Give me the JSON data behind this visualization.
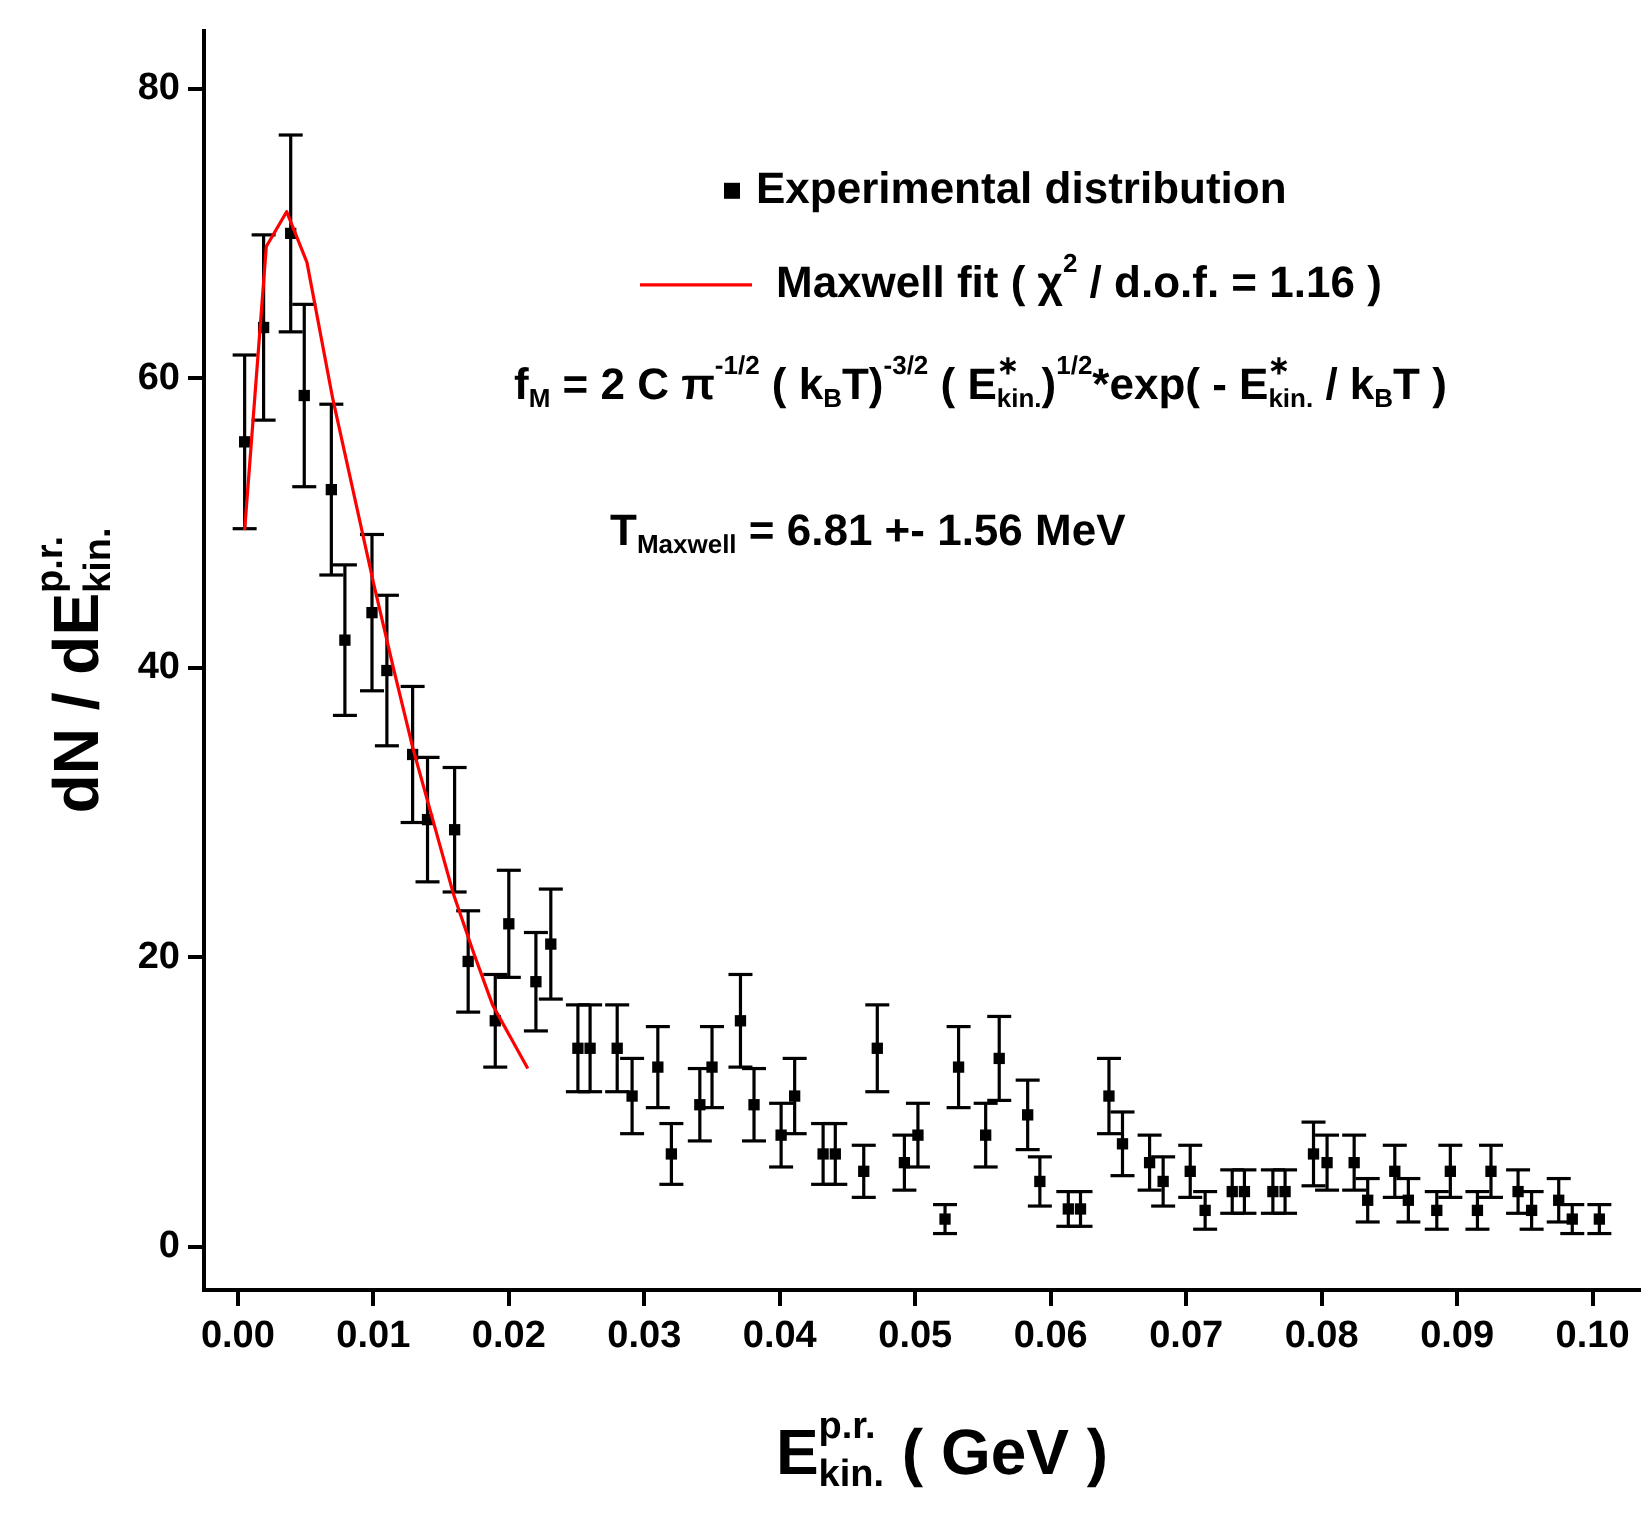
{
  "chart_data": {
    "type": "scatter",
    "xlabel": "E$^{p.r.}$$_{kin.}$ ( GeV )",
    "ylabel": "dN / dE$^{p.r.}$$_{kin.}$",
    "xlim": [
      -0.0025,
      0.1035
    ],
    "ylim": [
      -3,
      84
    ],
    "xticks": [
      {
        "value": 0,
        "label": "0.00"
      },
      {
        "value": 0.01,
        "label": "0.01"
      },
      {
        "value": 0.02,
        "label": "0.02"
      },
      {
        "value": 0.03,
        "label": "0.03"
      },
      {
        "value": 0.04,
        "label": "0.04"
      },
      {
        "value": 0.05,
        "label": "0.05"
      },
      {
        "value": 0.06,
        "label": "0.06"
      },
      {
        "value": 0.07,
        "label": "0.07"
      },
      {
        "value": 0.08,
        "label": "0.08"
      },
      {
        "value": 0.09,
        "label": "0.09"
      },
      {
        "value": 0.1,
        "label": "0.10"
      }
    ],
    "yticks": [
      0,
      20,
      40,
      60,
      80
    ],
    "legend": "top right",
    "annotations": [
      "f$_{M}$ = 2 C π$^{-1/2}$ ( k$_{B}$T)$^{-3/2}$ ( E$^{∗}$$_{kin.}$)$^{1/2}$*exp( - E$^{∗}$$_{kin.}$ / k$_{B}$T )",
      "T$_{Maxwell}$ = 6.81 +- 1.56 MeV"
    ],
    "series": [
      {
        "name": "Experimental distribution",
        "type": "scatter",
        "color": "#000000",
        "marker": "square",
        "x": [
          0.0005,
          0.0019,
          0.0039,
          0.0049,
          0.0069,
          0.0079,
          0.0099,
          0.011,
          0.0129,
          0.014,
          0.016,
          0.017,
          0.019,
          0.02,
          0.022,
          0.0231,
          0.0251,
          0.026,
          0.028,
          0.0291,
          0.031,
          0.032,
          0.0341,
          0.035,
          0.0371,
          0.0381,
          0.0401,
          0.0411,
          0.0432,
          0.0441,
          0.0462,
          0.0472,
          0.0492,
          0.0502,
          0.0522,
          0.0532,
          0.0552,
          0.0562,
          0.0583,
          0.0592,
          0.0613,
          0.0622,
          0.0643,
          0.0653,
          0.0673,
          0.0683,
          0.0703,
          0.0714,
          0.0734,
          0.0743,
          0.0764,
          0.0773,
          0.0794,
          0.0804,
          0.0824,
          0.0834,
          0.0854,
          0.0864,
          0.0885,
          0.0895,
          0.0915,
          0.0925,
          0.0945,
          0.0955,
          0.0975,
          0.0985,
          0.1005
        ],
        "values": [
          55.6,
          63.5,
          70.0,
          58.8,
          52.3,
          41.9,
          43.8,
          39.8,
          34.0,
          29.5,
          28.8,
          19.7,
          15.6,
          22.3,
          18.3,
          20.9,
          13.7,
          13.7,
          13.7,
          10.4,
          12.4,
          6.4,
          9.8,
          12.4,
          15.6,
          9.8,
          7.7,
          10.4,
          6.4,
          6.4,
          5.2,
          13.7,
          5.8,
          7.7,
          1.9,
          12.4,
          7.7,
          13.0,
          9.1,
          4.5,
          2.6,
          2.6,
          10.4,
          7.1,
          5.8,
          4.5,
          5.2,
          2.5,
          3.8,
          3.8,
          3.8,
          3.8,
          6.4,
          5.8,
          5.8,
          3.2,
          5.2,
          3.2,
          2.5,
          5.2,
          2.5,
          5.2,
          3.8,
          2.5,
          3.2,
          1.9,
          1.9
        ],
        "errors": [
          6.0,
          6.4,
          6.8,
          6.3,
          5.9,
          5.2,
          5.4,
          5.2,
          4.7,
          4.3,
          4.3,
          3.5,
          3.2,
          3.7,
          3.4,
          3.8,
          3.0,
          3.0,
          3.0,
          2.6,
          2.8,
          2.1,
          2.5,
          2.8,
          3.2,
          2.5,
          2.2,
          2.6,
          2.1,
          2.1,
          1.8,
          3.0,
          1.9,
          2.2,
          1.0,
          2.8,
          2.2,
          2.9,
          2.4,
          1.7,
          1.2,
          1.2,
          2.6,
          2.2,
          1.9,
          1.7,
          1.8,
          1.3,
          1.5,
          1.5,
          1.5,
          1.5,
          2.2,
          1.9,
          1.9,
          1.5,
          1.8,
          1.5,
          1.3,
          1.8,
          1.3,
          1.8,
          1.5,
          1.3,
          1.5,
          1.0,
          1.0
        ]
      },
      {
        "name": "Maxwell fit ( χ$^{2}$ / d.o.f. = 1.16 )",
        "type": "line",
        "color": "#ff0000",
        "marker": "none",
        "x": [
          0.0005,
          0.0021,
          0.0036,
          0.0051,
          0.007,
          0.01,
          0.0115,
          0.0129,
          0.0159,
          0.0174,
          0.0188,
          0.0214
        ],
        "values": [
          49.5,
          69.1,
          71.5,
          68.0,
          58.6,
          45.9,
          39.9,
          34.5,
          24.4,
          20.3,
          16.7,
          12.3
        ]
      }
    ]
  }
}
